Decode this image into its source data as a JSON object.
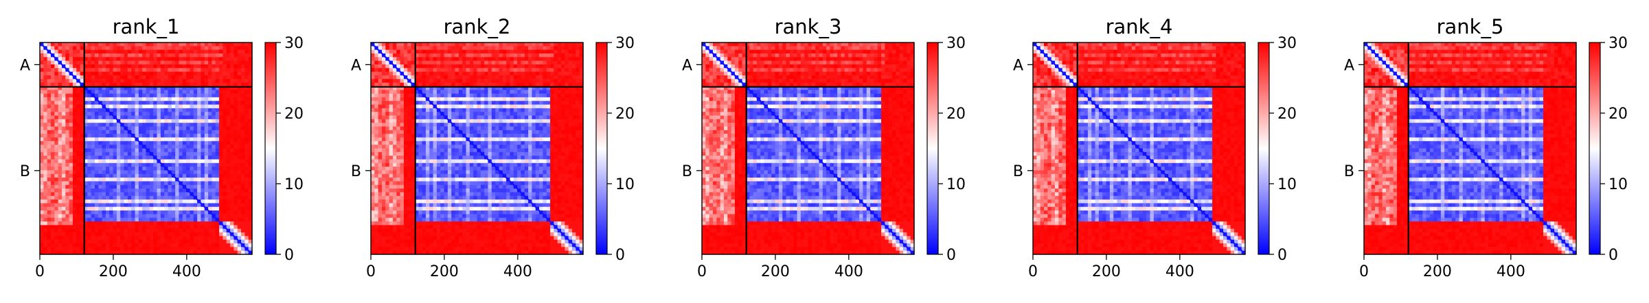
{
  "figure": {
    "colormap": "bwr",
    "colors": {
      "low": "#0000ff",
      "mid": "#ffffff",
      "high": "#ff0000",
      "frame": "#000000"
    }
  },
  "chart_data": [
    {
      "type": "heatmap",
      "title": "rank_1",
      "xlabel": "",
      "ylabel": "",
      "xlim": [
        0,
        578
      ],
      "ylim": [
        578,
        0
      ],
      "xticks": [
        0,
        200,
        400
      ],
      "xtick_labels": [
        "0",
        "200",
        "400"
      ],
      "chain_boundaries": [
        0,
        121,
        578
      ],
      "chain_labels": [
        "A",
        "B"
      ],
      "colorbar": {
        "vmin": 0,
        "vmax": 30,
        "ticks": [
          0,
          10,
          20,
          30
        ],
        "tick_labels": [
          "0",
          "10",
          "20",
          "30"
        ]
      },
      "variant": 0
    },
    {
      "type": "heatmap",
      "title": "rank_2",
      "xlabel": "",
      "ylabel": "",
      "xlim": [
        0,
        578
      ],
      "ylim": [
        578,
        0
      ],
      "xticks": [
        0,
        200,
        400
      ],
      "xtick_labels": [
        "0",
        "200",
        "400"
      ],
      "chain_boundaries": [
        0,
        121,
        578
      ],
      "chain_labels": [
        "A",
        "B"
      ],
      "colorbar": {
        "vmin": 0,
        "vmax": 30,
        "ticks": [
          0,
          10,
          20,
          30
        ],
        "tick_labels": [
          "0",
          "10",
          "20",
          "30"
        ]
      },
      "variant": 1
    },
    {
      "type": "heatmap",
      "title": "rank_3",
      "xlabel": "",
      "ylabel": "",
      "xlim": [
        0,
        578
      ],
      "ylim": [
        578,
        0
      ],
      "xticks": [
        0,
        200,
        400
      ],
      "xtick_labels": [
        "0",
        "200",
        "400"
      ],
      "chain_boundaries": [
        0,
        121,
        578
      ],
      "chain_labels": [
        "A",
        "B"
      ],
      "colorbar": {
        "vmin": 0,
        "vmax": 30,
        "ticks": [
          0,
          10,
          20,
          30
        ],
        "tick_labels": [
          "0",
          "10",
          "20",
          "30"
        ]
      },
      "variant": 2
    },
    {
      "type": "heatmap",
      "title": "rank_4",
      "xlabel": "",
      "ylabel": "",
      "xlim": [
        0,
        578
      ],
      "ylim": [
        578,
        0
      ],
      "xticks": [
        0,
        200,
        400
      ],
      "xtick_labels": [
        "0",
        "200",
        "400"
      ],
      "chain_boundaries": [
        0,
        121,
        578
      ],
      "chain_labels": [
        "A",
        "B"
      ],
      "colorbar": {
        "vmin": 0,
        "vmax": 30,
        "ticks": [
          0,
          10,
          20,
          30
        ],
        "tick_labels": [
          "0",
          "10",
          "20",
          "30"
        ]
      },
      "variant": 3
    },
    {
      "type": "heatmap",
      "title": "rank_5",
      "xlabel": "",
      "ylabel": "",
      "xlim": [
        0,
        578
      ],
      "ylim": [
        578,
        0
      ],
      "xticks": [
        0,
        200,
        400
      ],
      "xtick_labels": [
        "0",
        "200",
        "400"
      ],
      "chain_boundaries": [
        0,
        121,
        578
      ],
      "chain_labels": [
        "A",
        "B"
      ],
      "colorbar": {
        "vmin": 0,
        "vmax": 30,
        "ticks": [
          0,
          10,
          20,
          30
        ],
        "tick_labels": [
          "0",
          "10",
          "20",
          "30"
        ]
      },
      "variant": 4
    }
  ]
}
